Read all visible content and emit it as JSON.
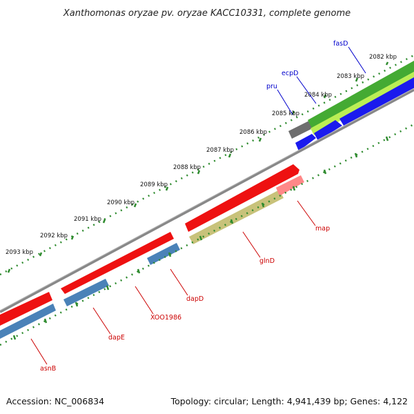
{
  "title": "Xanthomonas oryzae pv. oryzae KACC10331, complete genome",
  "footer": {
    "accession": "Accession: NC_006834",
    "topology": "Topology: circular; Length: 4,941,439 bp; Genes: 4,122"
  },
  "colors": {
    "backbone": "#888888",
    "tick": "#2e8b2e",
    "forward_cds": "#ee1111",
    "reverse_cds": "#4a82b8",
    "green_feature": "#44aa33",
    "lightgreen_feature": "#bbee55",
    "blue_feature": "#1a1aee",
    "olive_feature": "#c8c27a",
    "pink_feature": "#ff8888",
    "gray_feature": "#6e6e6e",
    "label_forward": "#cc0000",
    "label_reverse": "#0000cc"
  },
  "kbp_labels": [
    "2082 kbp",
    "2083 kbp",
    "2084 kbp",
    "2085 kbp",
    "2086 kbp",
    "2087 kbp",
    "2088 kbp",
    "2089 kbp",
    "2090 kbp",
    "2091 kbp",
    "2092 kbp",
    "2093 kbp"
  ],
  "gene_labels": {
    "fasD": "fasD",
    "ecpD": "ecpD",
    "pru": "pru",
    "map": "map",
    "glnD": "glnD",
    "dapD": "dapD",
    "XOO1986": "XOO1986",
    "dapE": "dapE",
    "asnB": "asnB"
  }
}
